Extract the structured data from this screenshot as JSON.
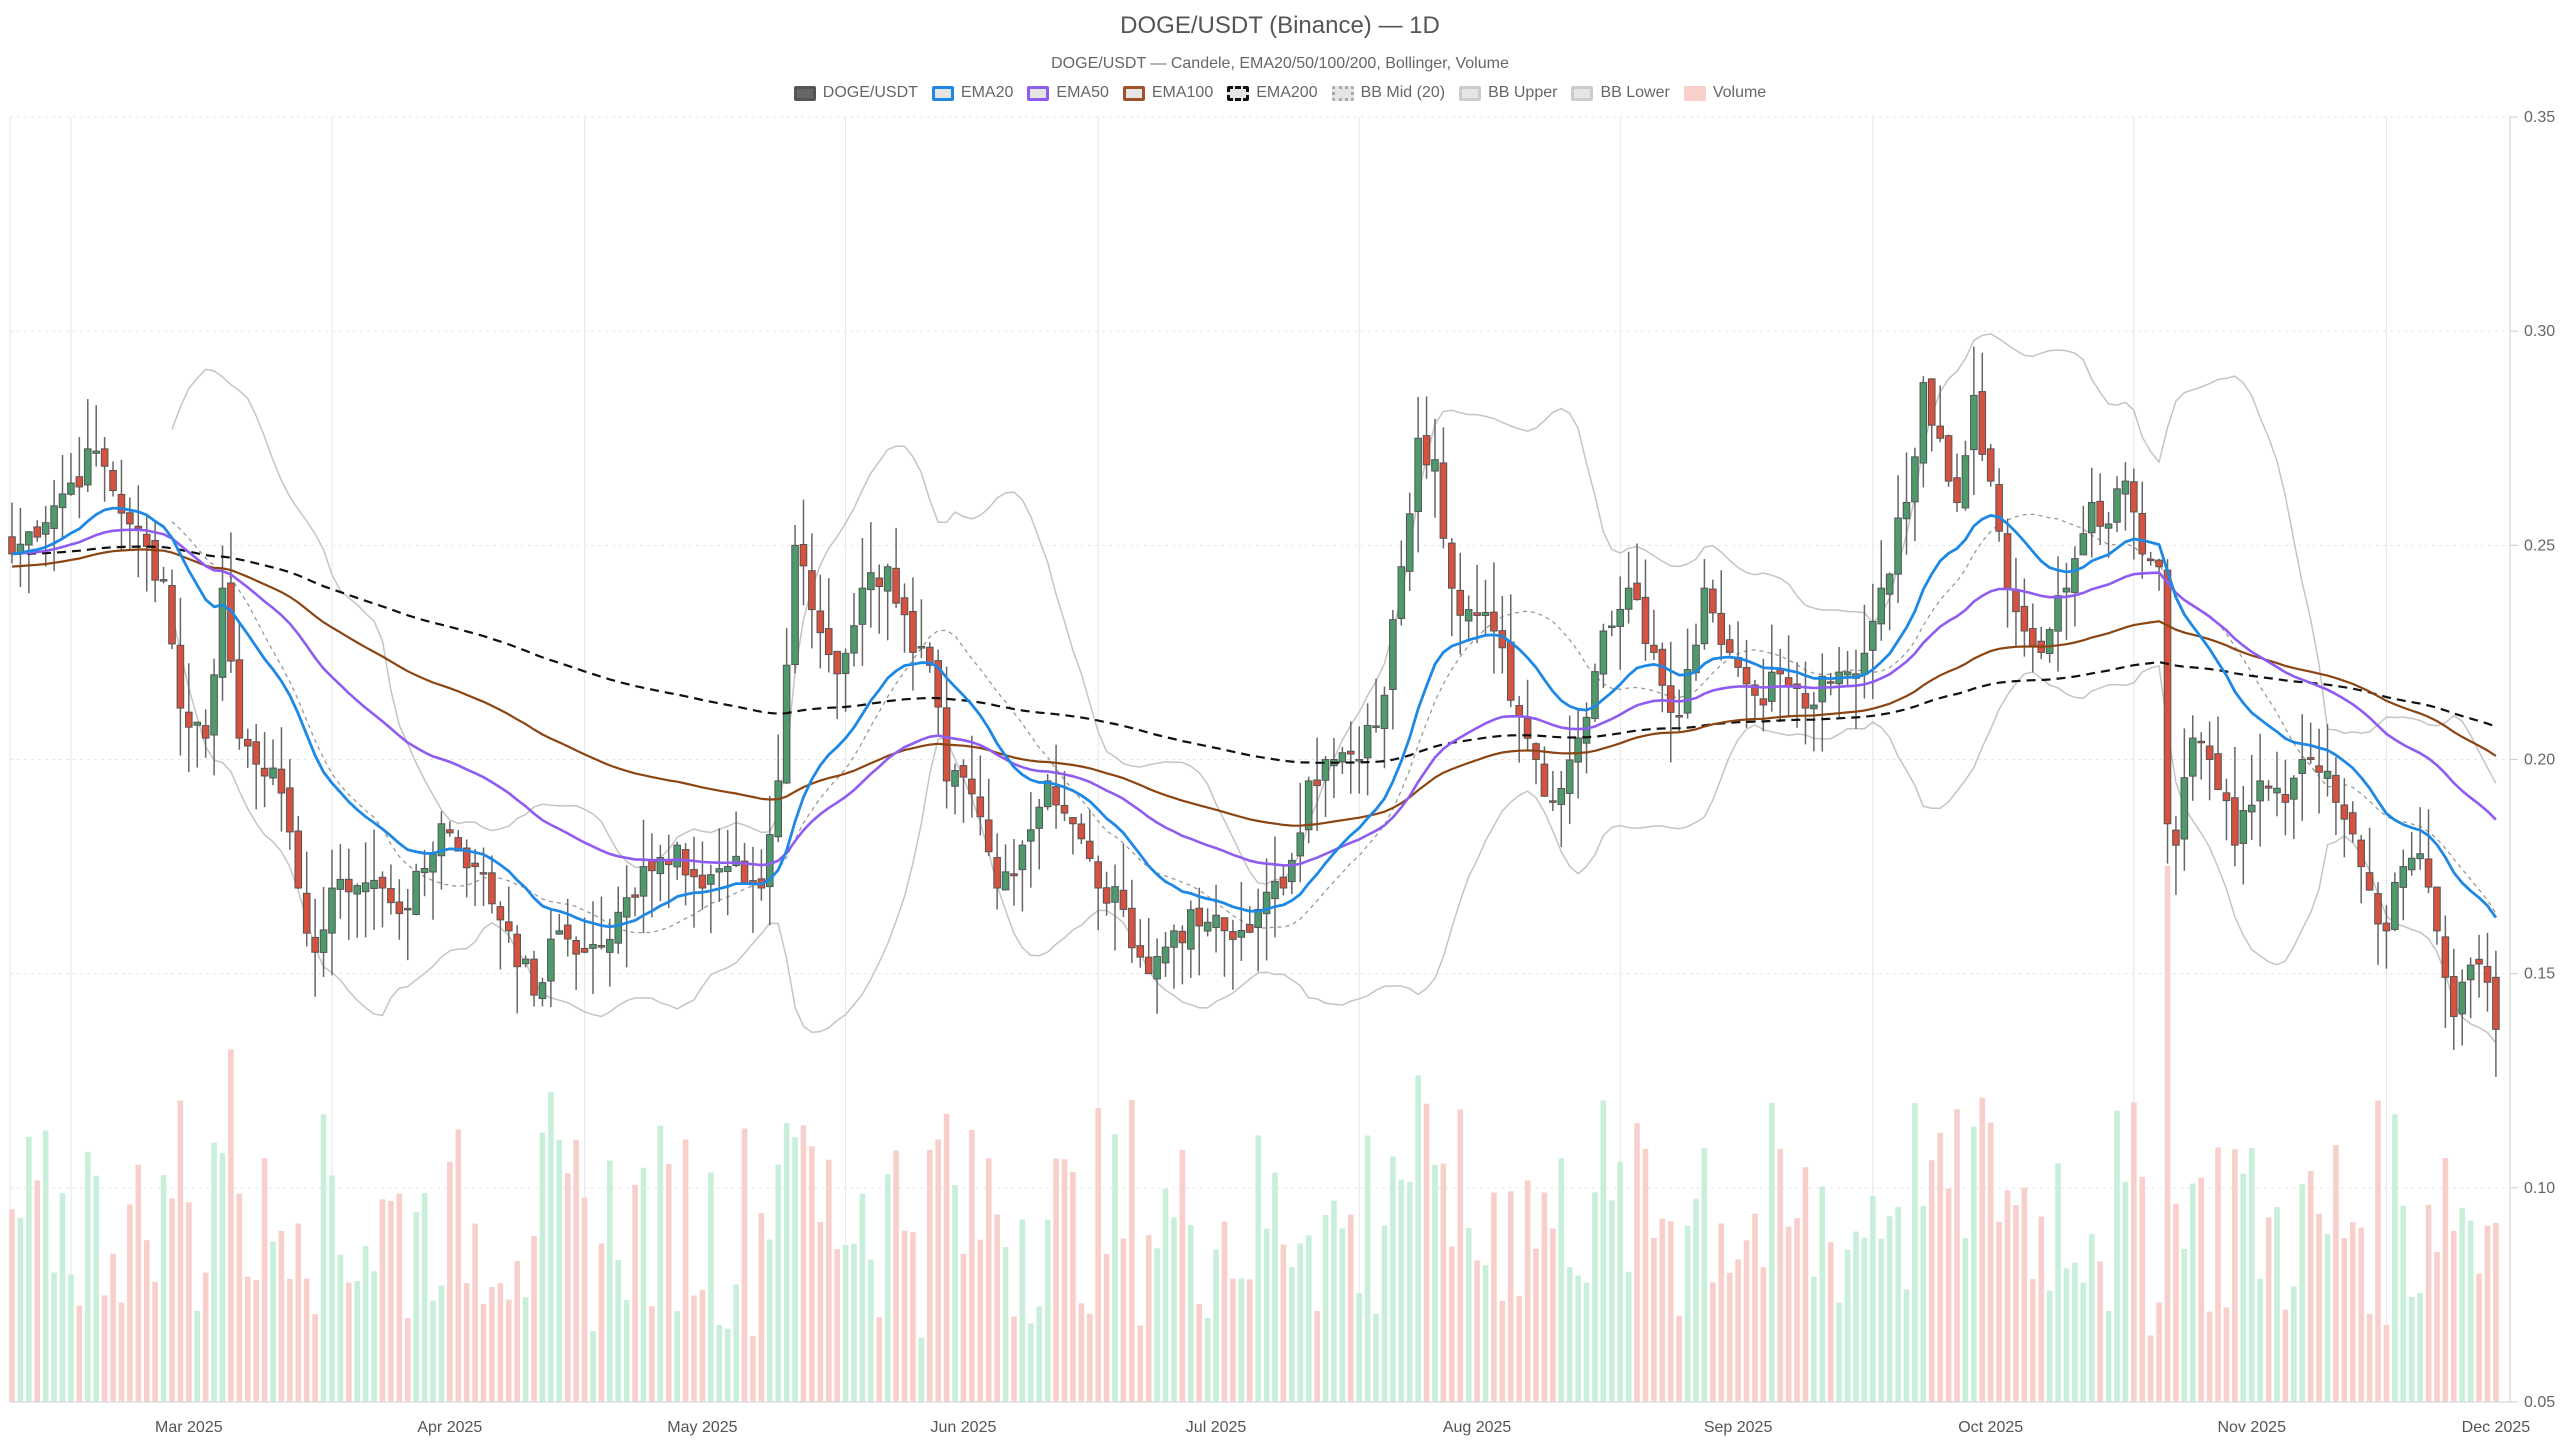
{
  "header": {
    "title": "DOGE/USDT (Binance) — 1D",
    "subtitle": "DOGE/USDT — Candele, EMA20/50/100/200, Bollinger, Volume"
  },
  "legend": [
    {
      "label": "DOGE/USDT",
      "fill": "#666666",
      "border": "#555555",
      "style": "solid"
    },
    {
      "label": "EMA20",
      "fill": "#e5e5e5",
      "border": "#1e88e5",
      "style": "solid"
    },
    {
      "label": "EMA50",
      "fill": "#e5e5e5",
      "border": "#8e5cf0",
      "style": "solid"
    },
    {
      "label": "EMA100",
      "fill": "#e5e5e5",
      "border": "#a0522d",
      "style": "solid"
    },
    {
      "label": "EMA200",
      "fill": "#e5e5e5",
      "border": "#111111",
      "style": "dashed"
    },
    {
      "label": "BB Mid (20)",
      "fill": "#e5e5e5",
      "border": "#aaaaaa",
      "style": "dotted"
    },
    {
      "label": "BB Upper",
      "fill": "#e5e5e5",
      "border": "#cccccc",
      "style": "solid"
    },
    {
      "label": "BB Lower",
      "fill": "#e5e5e5",
      "border": "#cccccc",
      "style": "solid"
    },
    {
      "label": "Volume",
      "fill": "#f8cfca",
      "border": "#f8cfca",
      "style": "solid"
    }
  ],
  "colors": {
    "up": "#4e9a6c",
    "down": "#d6523e",
    "wick": "#666666",
    "ema20": "#1e88e5",
    "ema50": "#8e5cf0",
    "ema100": "#8b4513",
    "ema200": "#111111",
    "bb": "#c4c4c4",
    "bbmid": "#999999",
    "vol_up": "#c8efd9",
    "vol_down": "#f8cfca",
    "grid": "#e6e6e6"
  },
  "chart_data": {
    "type": "candlestick",
    "title": "DOGE/USDT (Binance) — 1D",
    "subtitle": "DOGE/USDT — Candele, EMA20/50/100/200, Bollinger, Volume",
    "xlabel": "",
    "ylabel": "",
    "ylim": [
      0.05,
      0.35
    ],
    "y_ticks": [
      "0.05",
      "0.10",
      "0.15",
      "0.20",
      "0.25",
      "0.30",
      "0.35"
    ],
    "x_ticks": [
      "Mar 2025",
      "Apr 2025",
      "May 2025",
      "Jun 2025",
      "Jul 2025",
      "Aug 2025",
      "Sep 2025",
      "Oct 2025",
      "Nov 2025",
      "Dec 2025"
    ],
    "grid": true,
    "legend_position": "top",
    "series_names": [
      "DOGE/USDT",
      "EMA20",
      "EMA50",
      "EMA100",
      "EMA200",
      "BB Mid (20)",
      "BB Upper",
      "BB Lower",
      "Volume"
    ],
    "close_keypoints": [
      [
        "2025-02-22",
        0.248
      ],
      [
        "2025-02-28",
        0.262
      ],
      [
        "2025-03-04",
        0.272
      ],
      [
        "2025-03-08",
        0.255
      ],
      [
        "2025-03-12",
        0.242
      ],
      [
        "2025-03-14",
        0.212
      ],
      [
        "2025-03-17",
        0.205
      ],
      [
        "2025-03-19",
        0.24
      ],
      [
        "2025-03-21",
        0.205
      ],
      [
        "2025-03-25",
        0.198
      ],
      [
        "2025-03-28",
        0.17
      ],
      [
        "2025-03-30",
        0.155
      ],
      [
        "2025-04-02",
        0.172
      ],
      [
        "2025-04-07",
        0.17
      ],
      [
        "2025-04-10",
        0.165
      ],
      [
        "2025-04-14",
        0.185
      ],
      [
        "2025-04-18",
        0.175
      ],
      [
        "2025-04-22",
        0.16
      ],
      [
        "2025-04-25",
        0.145
      ],
      [
        "2025-04-28",
        0.16
      ],
      [
        "2025-05-01",
        0.155
      ],
      [
        "2025-05-04",
        0.158
      ],
      [
        "2025-05-08",
        0.175
      ],
      [
        "2025-05-12",
        0.18
      ],
      [
        "2025-05-15",
        0.17
      ],
      [
        "2025-05-18",
        0.175
      ],
      [
        "2025-05-22",
        0.17
      ],
      [
        "2025-05-24",
        0.195
      ],
      [
        "2025-05-26",
        0.25
      ],
      [
        "2025-05-28",
        0.235
      ],
      [
        "2025-05-31",
        0.22
      ],
      [
        "2025-06-03",
        0.24
      ],
      [
        "2025-06-06",
        0.245
      ],
      [
        "2025-06-09",
        0.225
      ],
      [
        "2025-06-11",
        0.222
      ],
      [
        "2025-06-13",
        0.195
      ],
      [
        "2025-06-16",
        0.192
      ],
      [
        "2025-06-19",
        0.17
      ],
      [
        "2025-06-22",
        0.18
      ],
      [
        "2025-06-25",
        0.195
      ],
      [
        "2025-06-28",
        0.185
      ],
      [
        "2025-07-01",
        0.17
      ],
      [
        "2025-07-04",
        0.165
      ],
      [
        "2025-07-07",
        0.15
      ],
      [
        "2025-07-10",
        0.16
      ],
      [
        "2025-07-14",
        0.162
      ],
      [
        "2025-07-17",
        0.158
      ],
      [
        "2025-07-20",
        0.165
      ],
      [
        "2025-07-23",
        0.17
      ],
      [
        "2025-07-26",
        0.195
      ],
      [
        "2025-07-29",
        0.2
      ],
      [
        "2025-08-01",
        0.2
      ],
      [
        "2025-08-04",
        0.215
      ],
      [
        "2025-08-06",
        0.245
      ],
      [
        "2025-08-08",
        0.275
      ],
      [
        "2025-08-10",
        0.27
      ],
      [
        "2025-08-12",
        0.24
      ],
      [
        "2025-08-14",
        0.235
      ],
      [
        "2025-08-17",
        0.23
      ],
      [
        "2025-08-20",
        0.21
      ],
      [
        "2025-08-22",
        0.2
      ],
      [
        "2025-08-24",
        0.19
      ],
      [
        "2025-08-27",
        0.205
      ],
      [
        "2025-08-30",
        0.23
      ],
      [
        "2025-09-02",
        0.24
      ],
      [
        "2025-09-05",
        0.225
      ],
      [
        "2025-09-08",
        0.21
      ],
      [
        "2025-09-11",
        0.24
      ],
      [
        "2025-09-14",
        0.225
      ],
      [
        "2025-09-17",
        0.215
      ],
      [
        "2025-09-20",
        0.22
      ],
      [
        "2025-09-23",
        0.212
      ],
      [
        "2025-09-26",
        0.218
      ],
      [
        "2025-09-29",
        0.22
      ],
      [
        "2025-10-02",
        0.24
      ],
      [
        "2025-10-05",
        0.26
      ],
      [
        "2025-10-07",
        0.288
      ],
      [
        "2025-10-09",
        0.275
      ],
      [
        "2025-10-11",
        0.26
      ],
      [
        "2025-10-13",
        0.285
      ],
      [
        "2025-10-15",
        0.265
      ],
      [
        "2025-10-17",
        0.24
      ],
      [
        "2025-10-19",
        0.23
      ],
      [
        "2025-10-21",
        0.225
      ],
      [
        "2025-10-24",
        0.24
      ],
      [
        "2025-10-27",
        0.26
      ],
      [
        "2025-10-29",
        0.255
      ],
      [
        "2025-10-31",
        0.265
      ],
      [
        "2025-11-02",
        0.248
      ],
      [
        "2025-11-04",
        0.245
      ],
      [
        "2025-11-05",
        0.185
      ],
      [
        "2025-11-06",
        0.18
      ],
      [
        "2025-11-08",
        0.205
      ],
      [
        "2025-11-10",
        0.2
      ],
      [
        "2025-11-13",
        0.18
      ],
      [
        "2025-11-16",
        0.195
      ],
      [
        "2025-11-19",
        0.19
      ],
      [
        "2025-11-22",
        0.2
      ],
      [
        "2025-11-25",
        0.19
      ],
      [
        "2025-11-28",
        0.175
      ],
      [
        "2025-12-01",
        0.16
      ],
      [
        "2025-12-03",
        0.175
      ],
      [
        "2025-12-05",
        0.178
      ],
      [
        "2025-12-07",
        0.16
      ],
      [
        "2025-12-09",
        0.14
      ],
      [
        "2025-12-11",
        0.152
      ],
      [
        "2025-12-13",
        0.148
      ],
      [
        "2025-12-14",
        0.137
      ]
    ],
    "last_close": 0.137,
    "ema_end_values": {
      "EMA20": 0.152,
      "EMA50": 0.171,
      "EMA100": 0.189,
      "EMA200": 0.201
    },
    "volume_note": "Volume bars overlaid at bottom of price pane, colored by candle direction; tallest spike ~early Nov 2025"
  }
}
